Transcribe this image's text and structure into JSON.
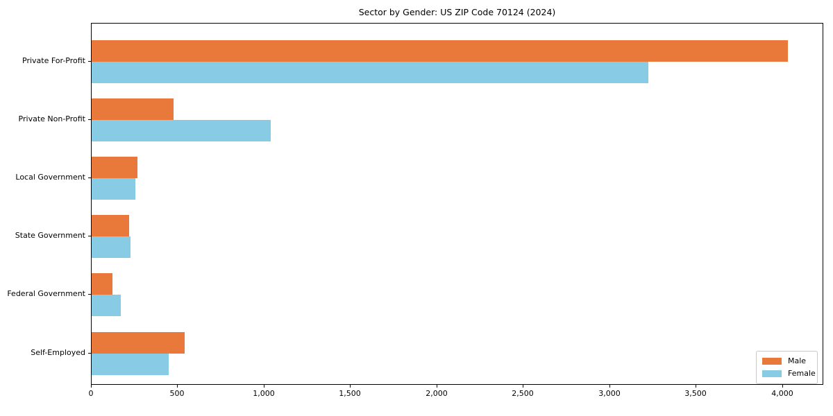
{
  "chart_data": {
    "type": "bar",
    "orientation": "horizontal",
    "title": "Sector by Gender: US ZIP Code 70124 (2024)",
    "categories": [
      "Private For-Profit",
      "Private Non-Profit",
      "Local Government",
      "State Government",
      "Federal Government",
      "Self-Employed"
    ],
    "series": [
      {
        "name": "Male",
        "color": "#E8793B",
        "values": [
          4030,
          475,
          265,
          215,
          120,
          540
        ]
      },
      {
        "name": "Female",
        "color": "#88CBE5",
        "values": [
          3220,
          1035,
          255,
          225,
          170,
          445
        ]
      }
    ],
    "xlabel": "",
    "ylabel": "",
    "xlim": [
      0,
      4237
    ],
    "x_ticks": [
      0,
      500,
      1000,
      1500,
      2000,
      2500,
      3000,
      3500,
      4000
    ],
    "x_tick_labels": [
      "0",
      "500",
      "1,000",
      "1,500",
      "2,000",
      "2,500",
      "3,000",
      "3,500",
      "4,000"
    ],
    "grid": false,
    "legend_position": "lower right",
    "axis_color": "#000000",
    "background_color": "#ffffff"
  }
}
